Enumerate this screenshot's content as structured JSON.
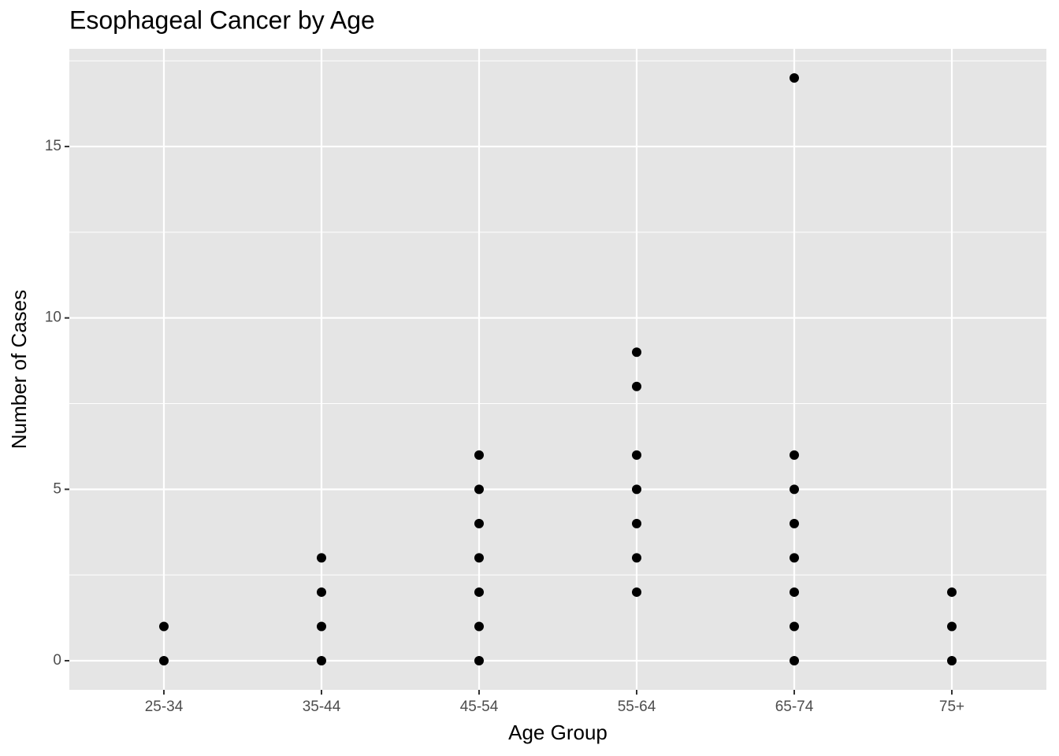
{
  "chart_data": {
    "type": "scatter",
    "title": "Esophageal Cancer by Age",
    "x_label": "Age Group",
    "y_label": "Number of Cases",
    "categories": [
      "25-34",
      "35-44",
      "45-54",
      "55-64",
      "65-74",
      "75+"
    ],
    "x": [
      "25-34",
      "25-34",
      "35-44",
      "35-44",
      "35-44",
      "35-44",
      "45-54",
      "45-54",
      "45-54",
      "45-54",
      "45-54",
      "45-54",
      "45-54",
      "55-64",
      "55-64",
      "55-64",
      "55-64",
      "55-64",
      "55-64",
      "55-64",
      "65-74",
      "65-74",
      "65-74",
      "65-74",
      "65-74",
      "65-74",
      "65-74",
      "65-74",
      "75+",
      "75+",
      "75+"
    ],
    "values": [
      0,
      1,
      0,
      1,
      2,
      3,
      0,
      1,
      2,
      3,
      4,
      5,
      6,
      2,
      3,
      4,
      5,
      6,
      8,
      9,
      0,
      1,
      2,
      3,
      4,
      5,
      6,
      17,
      0,
      1,
      2
    ],
    "color": "#000000",
    "ylim": [
      -0.85,
      17.85
    ],
    "yticks": [
      0,
      5,
      10,
      15
    ],
    "minor_yticks": [
      2.5,
      7.5,
      12.5,
      17.5
    ],
    "grid": true
  }
}
